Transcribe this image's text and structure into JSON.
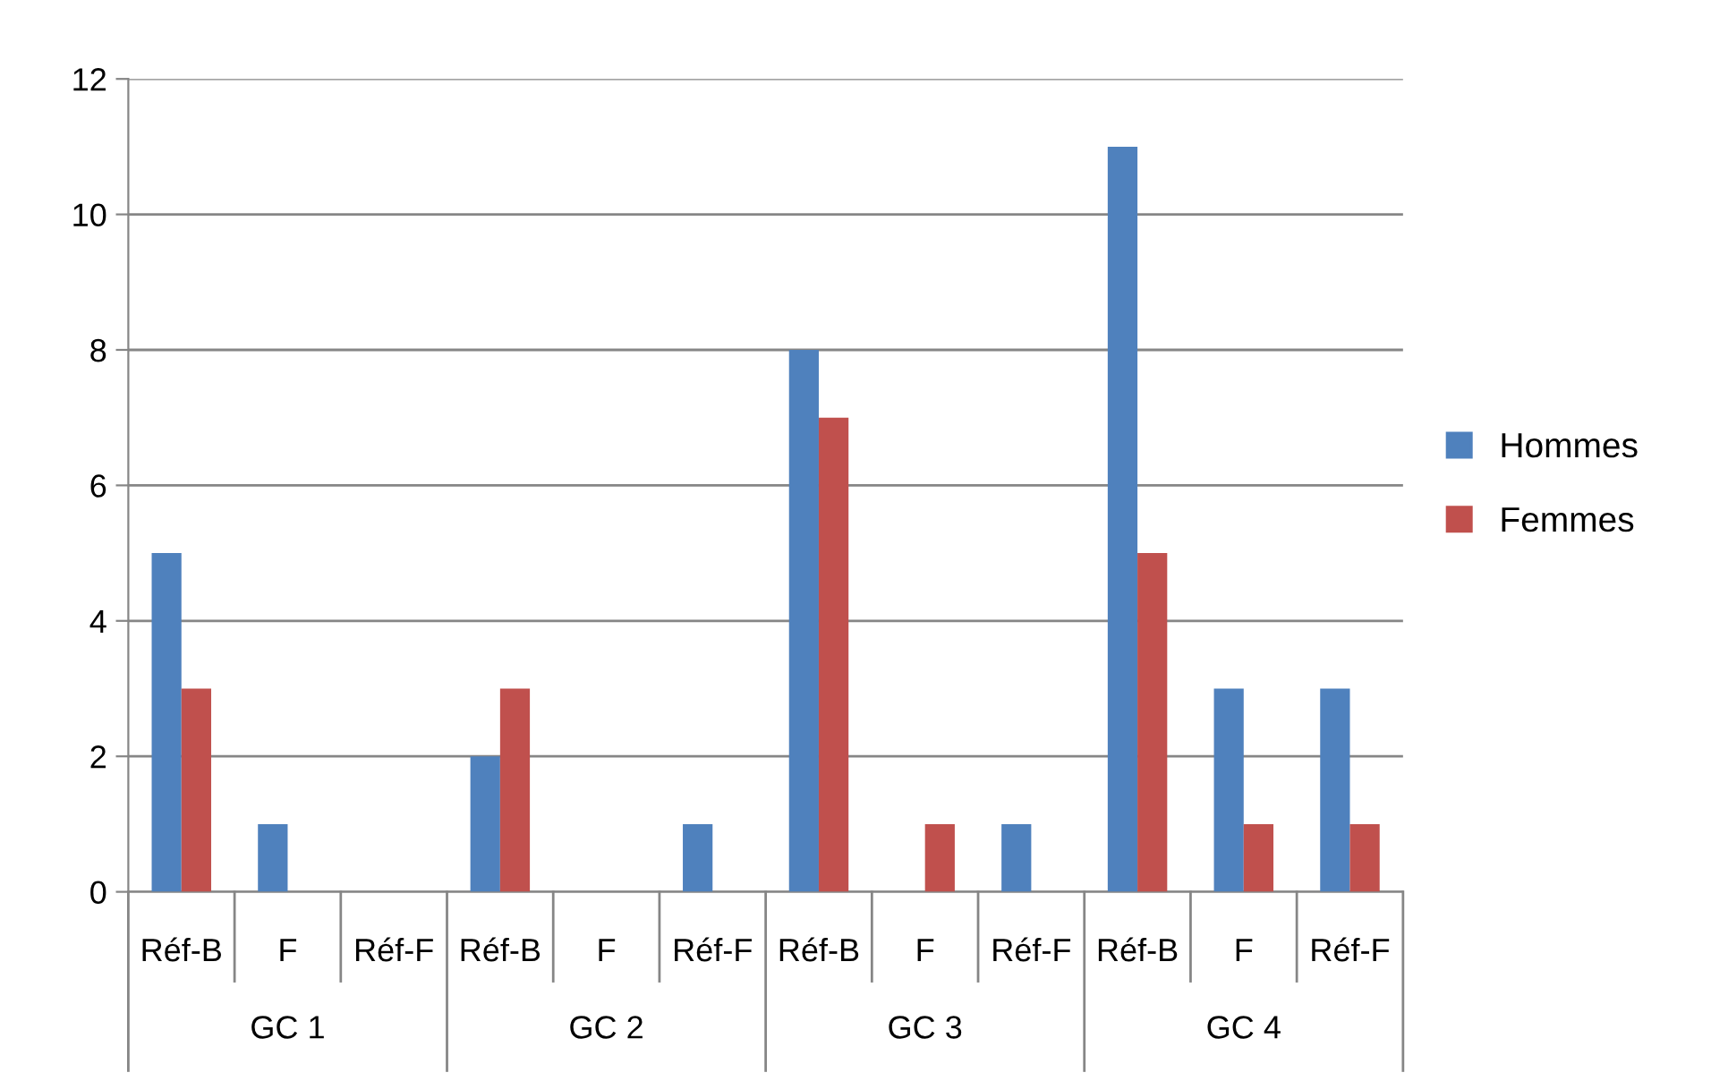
{
  "chart_data": {
    "type": "bar",
    "categories": [
      "Réf-B",
      "F",
      "Réf-F",
      "Réf-B",
      "F",
      "Réf-F",
      "Réf-B",
      "F",
      "Réf-F",
      "Réf-B",
      "F",
      "Réf-F"
    ],
    "series": [
      {
        "name": "Hommes",
        "color": "#4f81bd",
        "values": [
          5,
          1,
          0,
          2,
          0,
          1,
          8,
          0,
          1,
          11,
          3,
          3
        ]
      },
      {
        "name": "Femmes",
        "color": "#c0504d",
        "values": [
          3,
          0,
          0,
          3,
          0,
          0,
          7,
          1,
          0,
          5,
          1,
          1
        ]
      }
    ],
    "annotations": [
      "GC 1",
      "GC 2",
      "GC 3",
      "GC 4"
    ],
    "ylim": [
      0,
      12
    ],
    "yticks": [
      0,
      2,
      4,
      6,
      8,
      10,
      12
    ],
    "grid": "y",
    "legend": "right"
  }
}
